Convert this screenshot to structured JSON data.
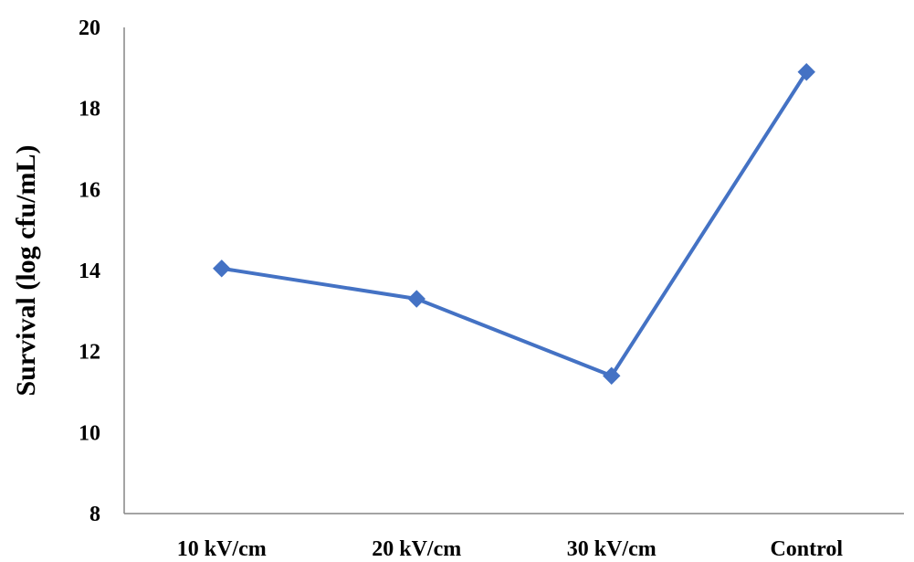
{
  "chart_data": {
    "type": "line",
    "title": "",
    "xlabel": "",
    "ylabel": "Survival (log cfu/mL)",
    "categories": [
      "10 kV/cm",
      "20 kV/cm",
      "30 kV/cm",
      "Control"
    ],
    "series": [
      {
        "values": [
          14.05,
          13.3,
          11.4,
          18.9
        ],
        "color": "#4472C4",
        "marker": "diamond"
      }
    ],
    "ylim": [
      8,
      20
    ],
    "yticks": [
      "8",
      "10",
      "12",
      "14",
      "16",
      "18",
      "20"
    ],
    "grid": false,
    "legend": "none"
  }
}
